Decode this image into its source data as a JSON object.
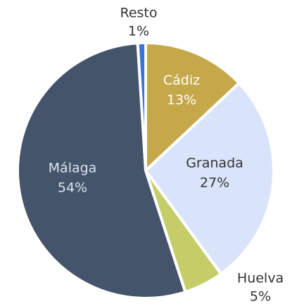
{
  "chart_data": {
    "type": "pie",
    "categories": [
      "Cádiz",
      "Granada",
      "Huelva",
      "Málaga",
      "Resto"
    ],
    "values": [
      13,
      27,
      5,
      54,
      1
    ],
    "value_labels": [
      "13%",
      "27%",
      "5%",
      "54%",
      "1%"
    ],
    "colors": [
      "#c4a84a",
      "#d9e4fb",
      "#c5cd69",
      "#44546a",
      "#3a74d6"
    ]
  }
}
